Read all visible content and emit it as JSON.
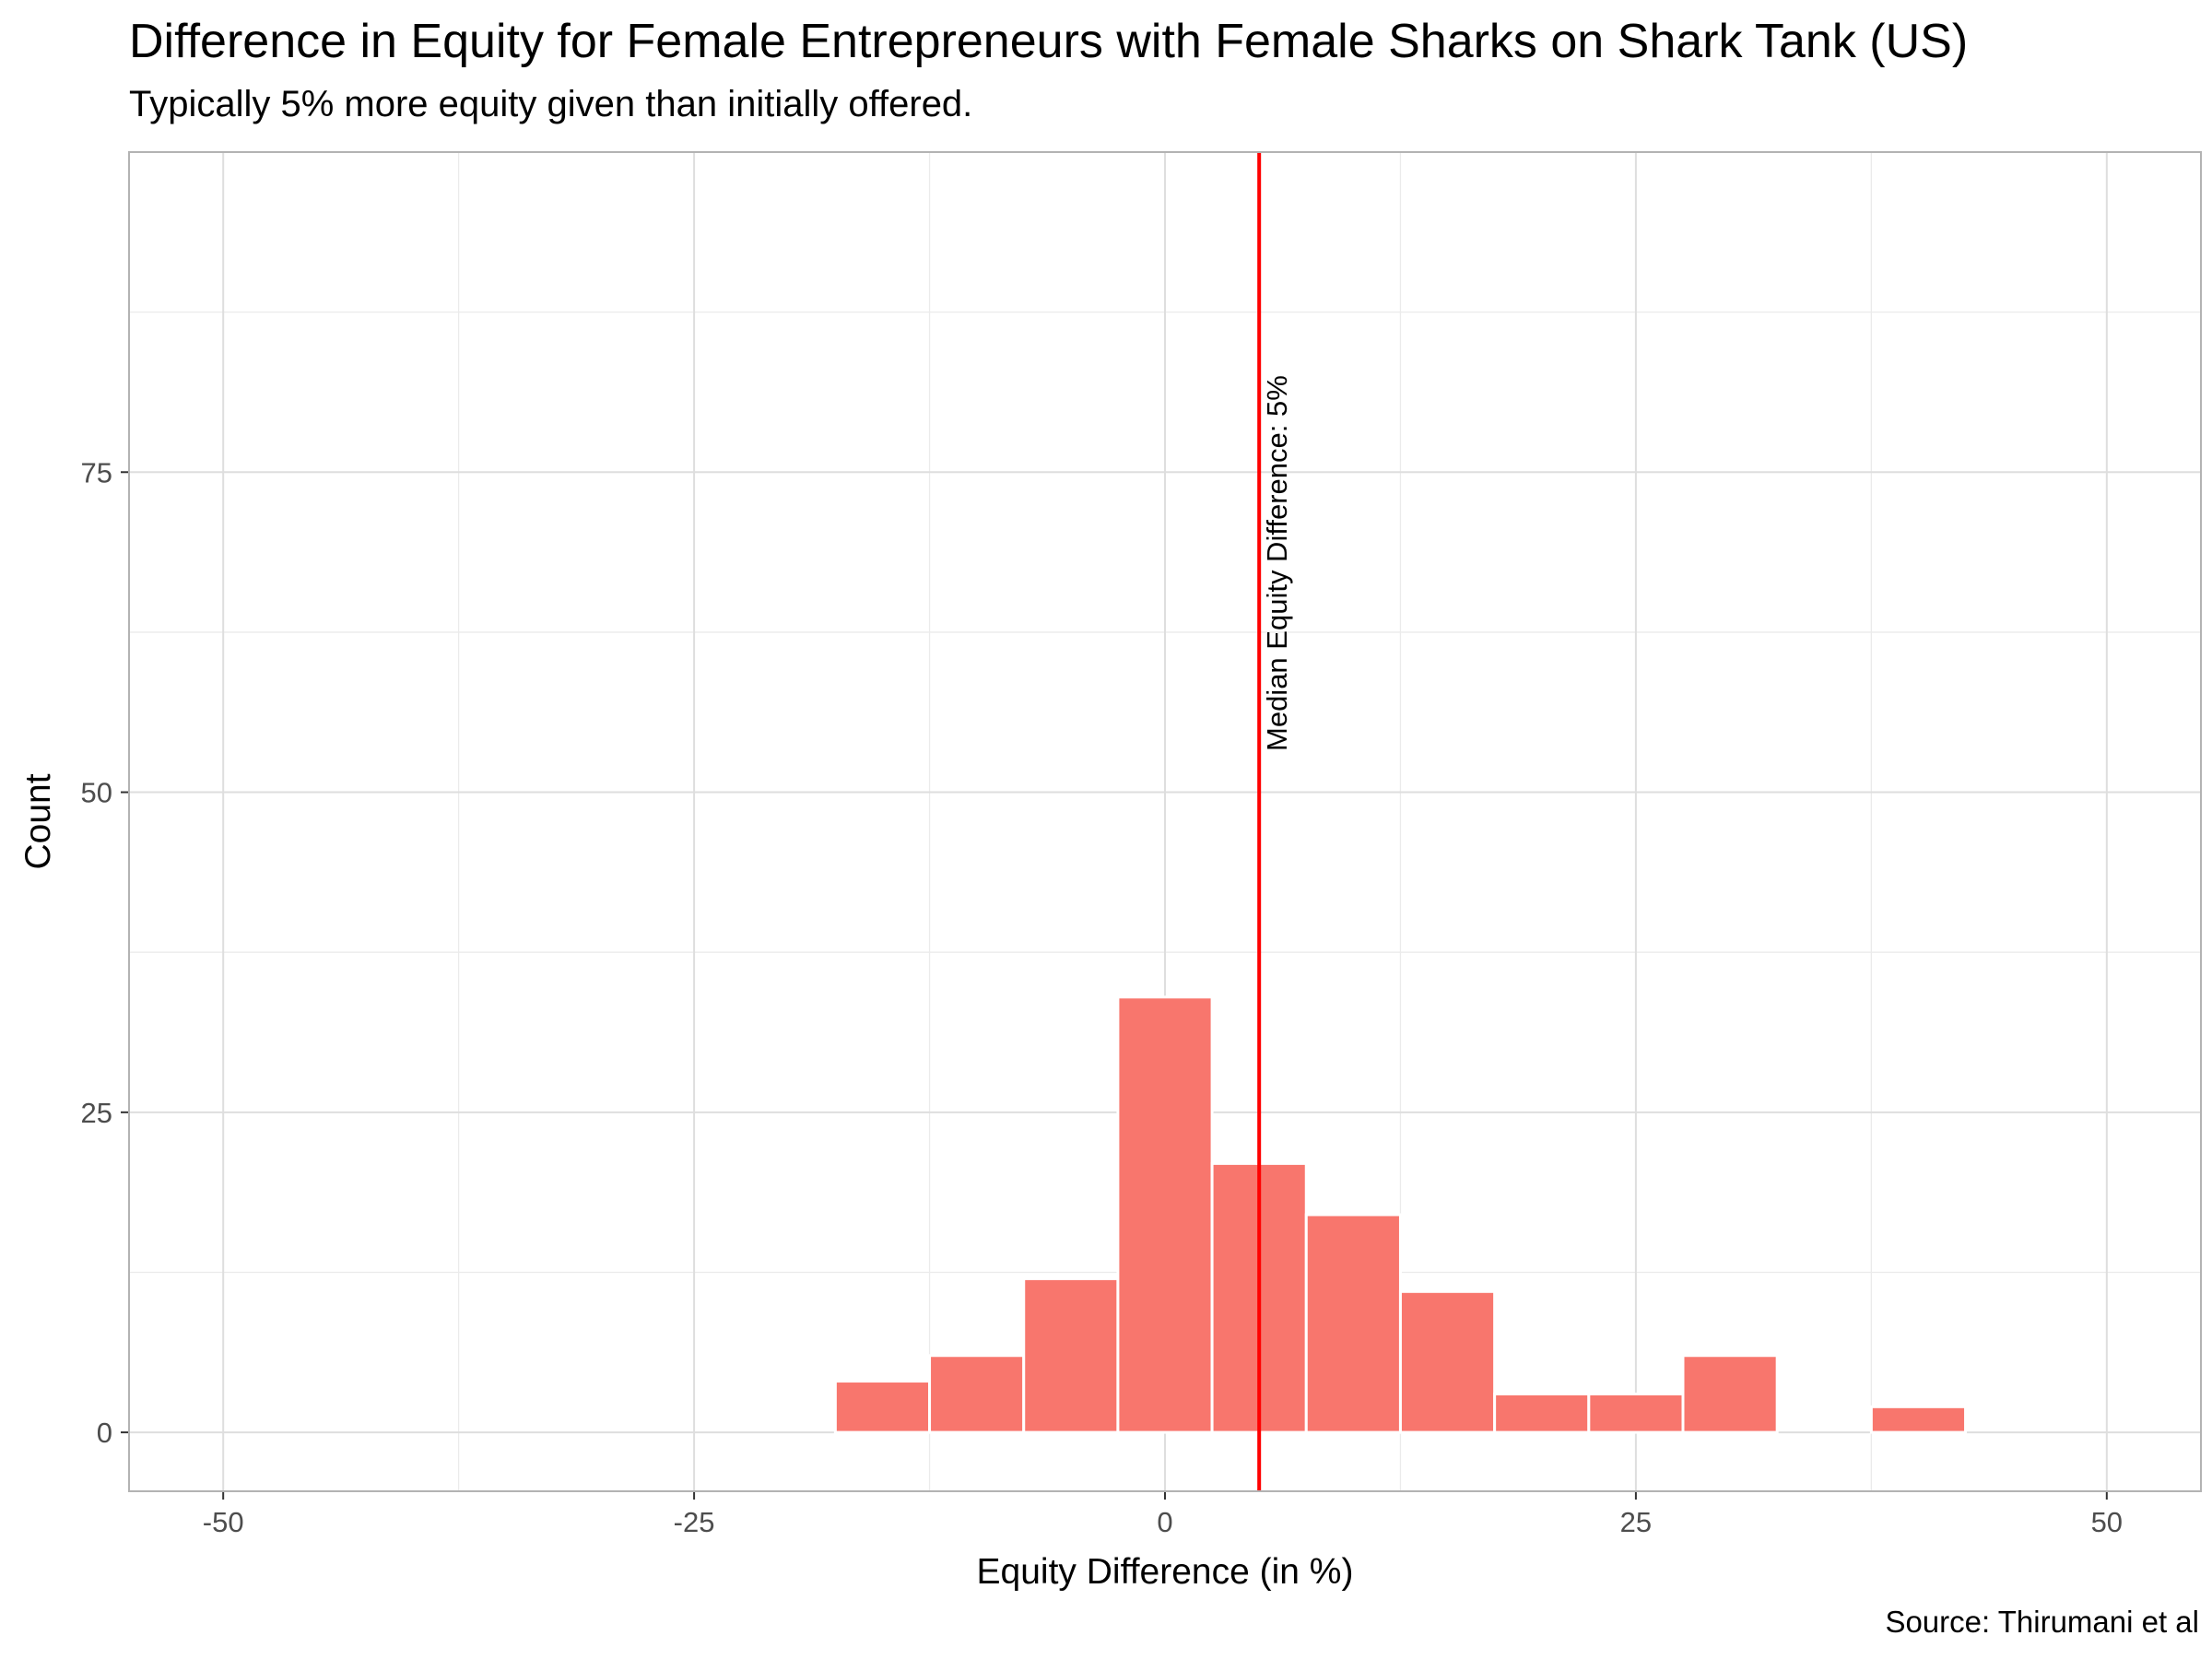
{
  "chart_data": {
    "type": "bar",
    "title": "Difference in Equity for Female Entrepreneurs with Female Sharks on Shark Tank (US)",
    "subtitle": "Typically 5% more equity given than initially offered.",
    "caption": "Source: Thirumani et al",
    "xlabel": "Equity Difference (in %)",
    "ylabel": "Count",
    "xlim": [
      -55,
      55
    ],
    "ylim": [
      -4.6,
      100
    ],
    "x_ticks": [
      -50,
      -25,
      0,
      25,
      50
    ],
    "x_tick_labels": [
      "-50",
      "-25",
      "0",
      "25",
      "50"
    ],
    "y_ticks": [
      0,
      25,
      50,
      75
    ],
    "y_tick_labels": [
      "0",
      "25",
      "50",
      "75"
    ],
    "x_minor_ticks": [
      -37.5,
      -12.5,
      12.5,
      37.5
    ],
    "y_minor_ticks": [
      12.5,
      37.5,
      62.5,
      87.5
    ],
    "grid": true,
    "bin_width": 5,
    "bins": [
      {
        "center": -15,
        "count": 4
      },
      {
        "center": -10,
        "count": 6
      },
      {
        "center": -5,
        "count": 12
      },
      {
        "center": 0,
        "count": 34
      },
      {
        "center": 5,
        "count": 21
      },
      {
        "center": 10,
        "count": 17
      },
      {
        "center": 15,
        "count": 11
      },
      {
        "center": 20,
        "count": 3
      },
      {
        "center": 25,
        "count": 3
      },
      {
        "center": 30,
        "count": 6
      },
      {
        "center": 35,
        "count": 0
      },
      {
        "center": 40,
        "count": 2
      }
    ],
    "bar_color": "#F8766D",
    "median_line": {
      "x": 5,
      "color": "#FF0000"
    },
    "annotation": "Median Equity Difference: 5%"
  }
}
